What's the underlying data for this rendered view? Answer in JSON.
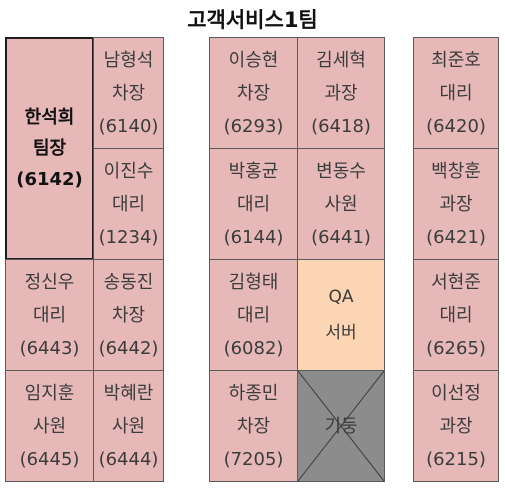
{
  "title": "고객서비스1팀",
  "leader": {
    "name": "한석희",
    "title": "팀장",
    "ext": "(6142)"
  },
  "seats": {
    "nam": {
      "name": "남형석",
      "title": "차장",
      "ext": "(6140)"
    },
    "lee_js": {
      "name": "이진수",
      "title": "대리",
      "ext": "(1234)"
    },
    "jung": {
      "name": "정신우",
      "title": "대리",
      "ext": "(6443)"
    },
    "song": {
      "name": "송동진",
      "title": "차장",
      "ext": "(6442)"
    },
    "lim": {
      "name": "임지훈",
      "title": "사원",
      "ext": "(6445)"
    },
    "park_hr": {
      "name": "박혜란",
      "title": "사원",
      "ext": "(6444)"
    },
    "lee_sh": {
      "name": "이승현",
      "title": "차장",
      "ext": "(6293)"
    },
    "kim_sh": {
      "name": "김세혁",
      "title": "과장",
      "ext": "(6418)"
    },
    "park_hg": {
      "name": "박홍균",
      "title": "대리",
      "ext": "(6144)"
    },
    "byun": {
      "name": "변동수",
      "title": "사원",
      "ext": "(6441)"
    },
    "kim_ht": {
      "name": "김형태",
      "title": "대리",
      "ext": "(6082)"
    },
    "ha": {
      "name": "하종민",
      "title": "차장",
      "ext": "(7205)"
    },
    "choi": {
      "name": "최준호",
      "title": "대리",
      "ext": "(6420)"
    },
    "baek": {
      "name": "백창훈",
      "title": "과장",
      "ext": "(6421)"
    },
    "seo": {
      "name": "서현준",
      "title": "대리",
      "ext": "(6265)"
    },
    "lee_sj": {
      "name": "이선정",
      "title": "과장",
      "ext": "(6215)"
    }
  },
  "qa": {
    "line1": "QA",
    "line2": "서버"
  },
  "pillar": {
    "label": "기둥"
  }
}
